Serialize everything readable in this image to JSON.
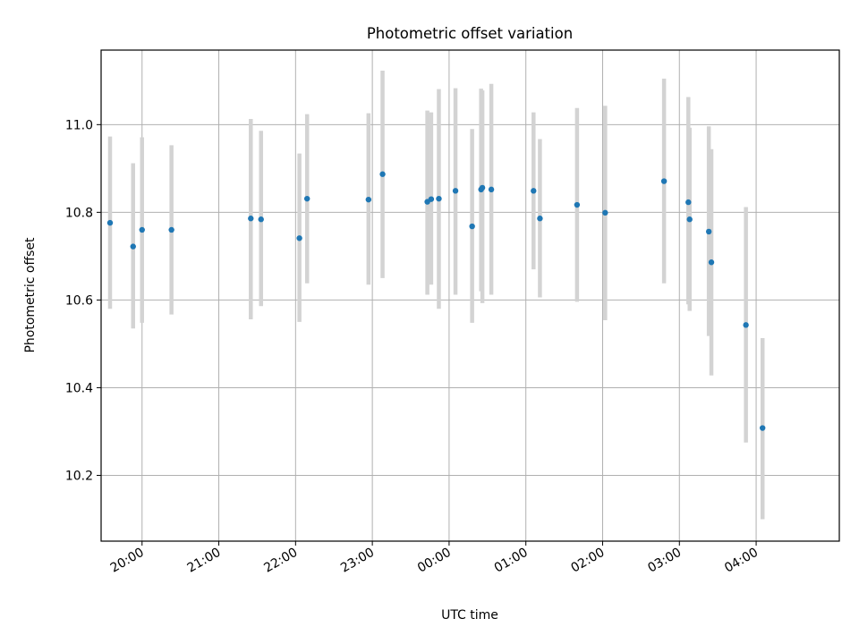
{
  "chart_data": {
    "type": "scatter",
    "title": "Photometric offset variation",
    "xlabel": "UTC time",
    "ylabel": "Photometric offset",
    "x_unit": "UTC",
    "xlim": [
      "19:28",
      "05:05"
    ],
    "ylim": [
      10.05,
      11.17
    ],
    "x_ticks": [
      "20:00",
      "21:00",
      "22:00",
      "23:00",
      "00:00",
      "01:00",
      "02:00",
      "03:00",
      "04:00"
    ],
    "y_ticks": [
      10.2,
      10.4,
      10.6,
      10.8,
      11.0
    ],
    "y_tick_labels": [
      "10.2",
      "10.4",
      "10.6",
      "10.8",
      "11.0"
    ],
    "grid": true,
    "colors": {
      "points": "#1f77b4",
      "error_bars": "#d3d3d3",
      "grid": "#b0b0b0"
    },
    "series": [
      {
        "x": [
          "19:35",
          "19:53",
          "20:00",
          "20:23",
          "21:25",
          "21:33",
          "22:03",
          "22:09",
          "22:57",
          "23:08",
          "23:43",
          "23:46",
          "23:52",
          "00:05",
          "00:18",
          "00:25",
          "00:26",
          "00:33",
          "01:06",
          "01:11",
          "01:40",
          "02:02",
          "02:48",
          "03:07",
          "03:08",
          "03:23",
          "03:25",
          "03:52",
          "04:05"
        ],
        "y": [
          10.776,
          10.722,
          10.76,
          10.76,
          10.786,
          10.784,
          10.741,
          10.831,
          10.829,
          10.887,
          10.824,
          10.83,
          10.831,
          10.849,
          10.768,
          10.852,
          10.856,
          10.852,
          10.849,
          10.786,
          10.817,
          10.799,
          10.871,
          10.823,
          10.784,
          10.756,
          10.686,
          10.543,
          10.308
        ],
        "y_low": [
          10.58,
          10.535,
          10.548,
          10.567,
          10.556,
          10.586,
          10.55,
          10.638,
          10.635,
          10.65,
          10.612,
          10.635,
          10.58,
          10.612,
          10.548,
          10.62,
          10.593,
          10.612,
          10.67,
          10.606,
          10.596,
          10.554,
          10.638,
          10.59,
          10.575,
          10.518,
          10.428,
          10.275,
          10.1
        ],
        "y_high": [
          10.973,
          10.912,
          10.971,
          10.953,
          11.013,
          10.986,
          10.934,
          11.024,
          11.026,
          11.123,
          11.032,
          11.028,
          11.081,
          11.083,
          10.99,
          11.082,
          11.078,
          11.093,
          11.028,
          10.967,
          11.038,
          11.043,
          11.105,
          11.063,
          10.993,
          10.996,
          10.944,
          10.812,
          10.513
        ]
      }
    ]
  }
}
